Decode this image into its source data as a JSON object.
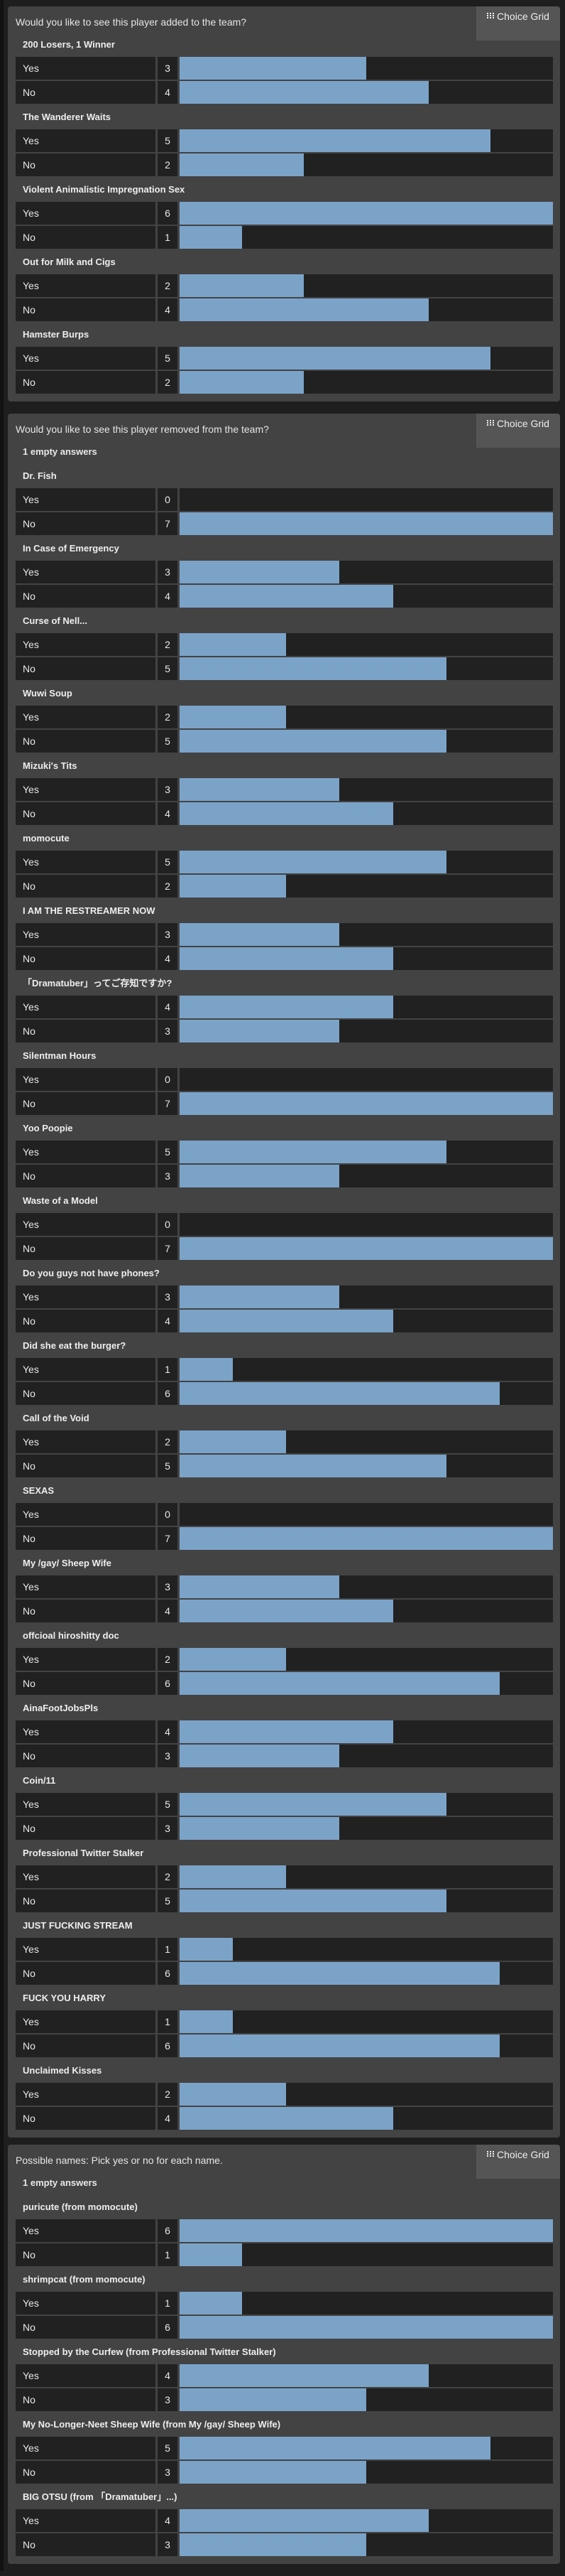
{
  "colors": {
    "bar": "#7ba3c8",
    "panel": "#434343",
    "cell": "#212121"
  },
  "badge_label": "Choice Grid",
  "badge_icon": "grid-icon",
  "panels": [
    {
      "title": "Would you like to see this player added to the team?",
      "empty_answers": null,
      "questions": [
        {
          "name": "200 Losers, 1 Winner",
          "options": [
            {
              "label": "Yes",
              "count": 3
            },
            {
              "label": "No",
              "count": 4
            }
          ]
        },
        {
          "name": "The Wanderer Waits",
          "options": [
            {
              "label": "Yes",
              "count": 5
            },
            {
              "label": "No",
              "count": 2
            }
          ]
        },
        {
          "name": "Violent Animalistic Impregnation Sex",
          "options": [
            {
              "label": "Yes",
              "count": 6
            },
            {
              "label": "No",
              "count": 1
            }
          ]
        },
        {
          "name": "Out for Milk and Cigs",
          "options": [
            {
              "label": "Yes",
              "count": 2
            },
            {
              "label": "No",
              "count": 4
            }
          ]
        },
        {
          "name": "Hamster Burps",
          "options": [
            {
              "label": "Yes",
              "count": 5
            },
            {
              "label": "No",
              "count": 2
            }
          ]
        }
      ]
    },
    {
      "title": "Would you like to see this player removed from the team?",
      "empty_answers": "1 empty answers",
      "questions": [
        {
          "name": "Dr. Fish",
          "options": [
            {
              "label": "Yes",
              "count": 0
            },
            {
              "label": "No",
              "count": 7
            }
          ]
        },
        {
          "name": "In Case of Emergency",
          "options": [
            {
              "label": "Yes",
              "count": 3
            },
            {
              "label": "No",
              "count": 4
            }
          ]
        },
        {
          "name": "Curse of Nell...",
          "options": [
            {
              "label": "Yes",
              "count": 2
            },
            {
              "label": "No",
              "count": 5
            }
          ]
        },
        {
          "name": "Wuwi Soup",
          "options": [
            {
              "label": "Yes",
              "count": 2
            },
            {
              "label": "No",
              "count": 5
            }
          ]
        },
        {
          "name": "Mizuki's Tits",
          "options": [
            {
              "label": "Yes",
              "count": 3
            },
            {
              "label": "No",
              "count": 4
            }
          ]
        },
        {
          "name": "momocute",
          "options": [
            {
              "label": "Yes",
              "count": 5
            },
            {
              "label": "No",
              "count": 2
            }
          ]
        },
        {
          "name": "I AM THE RESTREAMER NOW",
          "options": [
            {
              "label": "Yes",
              "count": 3
            },
            {
              "label": "No",
              "count": 4
            }
          ]
        },
        {
          "name": "「Dramatuber」ってご存知ですか?",
          "options": [
            {
              "label": "Yes",
              "count": 4
            },
            {
              "label": "No",
              "count": 3
            }
          ]
        },
        {
          "name": "Silentman Hours",
          "options": [
            {
              "label": "Yes",
              "count": 0
            },
            {
              "label": "No",
              "count": 7
            }
          ]
        },
        {
          "name": "Yoo Poopie",
          "options": [
            {
              "label": "Yes",
              "count": 5
            },
            {
              "label": "No",
              "count": 3
            }
          ]
        },
        {
          "name": "Waste of a Model",
          "options": [
            {
              "label": "Yes",
              "count": 0
            },
            {
              "label": "No",
              "count": 7
            }
          ]
        },
        {
          "name": "Do you guys not have phones?",
          "options": [
            {
              "label": "Yes",
              "count": 3
            },
            {
              "label": "No",
              "count": 4
            }
          ]
        },
        {
          "name": "Did she eat the burger?",
          "options": [
            {
              "label": "Yes",
              "count": 1
            },
            {
              "label": "No",
              "count": 6
            }
          ]
        },
        {
          "name": "Call of the Void",
          "options": [
            {
              "label": "Yes",
              "count": 2
            },
            {
              "label": "No",
              "count": 5
            }
          ]
        },
        {
          "name": "SEXAS",
          "options": [
            {
              "label": "Yes",
              "count": 0
            },
            {
              "label": "No",
              "count": 7
            }
          ]
        },
        {
          "name": "My /gay/ Sheep Wife",
          "options": [
            {
              "label": "Yes",
              "count": 3
            },
            {
              "label": "No",
              "count": 4
            }
          ]
        },
        {
          "name": "offcioal hiroshitty doc",
          "options": [
            {
              "label": "Yes",
              "count": 2
            },
            {
              "label": "No",
              "count": 6
            }
          ]
        },
        {
          "name": "AinaFootJobsPls",
          "options": [
            {
              "label": "Yes",
              "count": 4
            },
            {
              "label": "No",
              "count": 3
            }
          ]
        },
        {
          "name": "Coin/11",
          "options": [
            {
              "label": "Yes",
              "count": 5
            },
            {
              "label": "No",
              "count": 3
            }
          ]
        },
        {
          "name": "Professional Twitter Stalker",
          "options": [
            {
              "label": "Yes",
              "count": 2
            },
            {
              "label": "No",
              "count": 5
            }
          ]
        },
        {
          "name": "JUST FUCKING STREAM",
          "options": [
            {
              "label": "Yes",
              "count": 1
            },
            {
              "label": "No",
              "count": 6
            }
          ]
        },
        {
          "name": "FUCK YOU HARRY",
          "options": [
            {
              "label": "Yes",
              "count": 1
            },
            {
              "label": "No",
              "count": 6
            }
          ]
        },
        {
          "name": "Unclaimed Kisses",
          "options": [
            {
              "label": "Yes",
              "count": 2
            },
            {
              "label": "No",
              "count": 4
            }
          ]
        }
      ]
    },
    {
      "title": "Possible names: Pick yes or no for each name.",
      "empty_answers": "1 empty answers",
      "questions": [
        {
          "name": "puricute (from momocute)",
          "options": [
            {
              "label": "Yes",
              "count": 6
            },
            {
              "label": "No",
              "count": 1
            }
          ]
        },
        {
          "name": "shrimpcat (from momocute)",
          "options": [
            {
              "label": "Yes",
              "count": 1
            },
            {
              "label": "No",
              "count": 6
            }
          ]
        },
        {
          "name": "Stopped by the Curfew (from Professional Twitter Stalker)",
          "options": [
            {
              "label": "Yes",
              "count": 4
            },
            {
              "label": "No",
              "count": 3
            }
          ]
        },
        {
          "name": "My No-Longer-Neet Sheep Wife (from My /gay/ Sheep Wife)",
          "options": [
            {
              "label": "Yes",
              "count": 5
            },
            {
              "label": "No",
              "count": 3
            }
          ]
        },
        {
          "name": "BIG OTSU (from 「Dramatuber」...)",
          "options": [
            {
              "label": "Yes",
              "count": 4
            },
            {
              "label": "No",
              "count": 3
            }
          ]
        }
      ]
    }
  ]
}
